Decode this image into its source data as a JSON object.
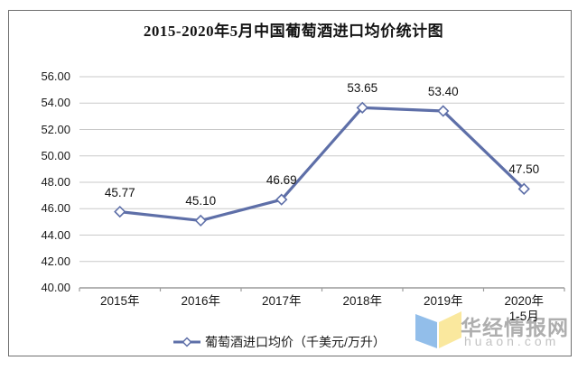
{
  "title": "2015-2020年5月中国葡萄酒进口均价统计图",
  "legend": {
    "label": "葡萄酒进口均价（千美元/万升）"
  },
  "watermark": {
    "site_name": "华经情报网",
    "site_url": "huaon.com"
  },
  "colors": {
    "series_line": "#5E6FA8",
    "marker_fill": "#FFFFFF",
    "gridline": "#C9C9C9",
    "axis_line": "#9C9C9C",
    "logo_blue": "#92BEEA",
    "logo_yellow": "#FAE89E"
  },
  "chart_data": {
    "type": "line",
    "title": "2015-2020年5月中国葡萄酒进口均价统计图",
    "categories": [
      "2015年",
      "2016年",
      "2017年",
      "2018年",
      "2019年",
      "2020年\n1-5月"
    ],
    "values": [
      45.77,
      45.1,
      46.69,
      53.65,
      53.4,
      47.5
    ],
    "point_labels": [
      "45.77",
      "45.10",
      "46.69",
      "53.65",
      "53.40",
      "47.50"
    ],
    "series": [
      {
        "name": "葡萄酒进口均价（千美元/万升）",
        "values": [
          45.77,
          45.1,
          46.69,
          53.65,
          53.4,
          47.5
        ]
      }
    ],
    "xlabel": "",
    "ylabel": "",
    "ylim": [
      40,
      56
    ],
    "y_step": 2,
    "y_tick_labels": [
      "40.00",
      "42.00",
      "44.00",
      "46.00",
      "48.00",
      "50.00",
      "52.00",
      "54.00",
      "56.00"
    ],
    "grid": true,
    "legend_position": "bottom",
    "marker": "diamond"
  }
}
